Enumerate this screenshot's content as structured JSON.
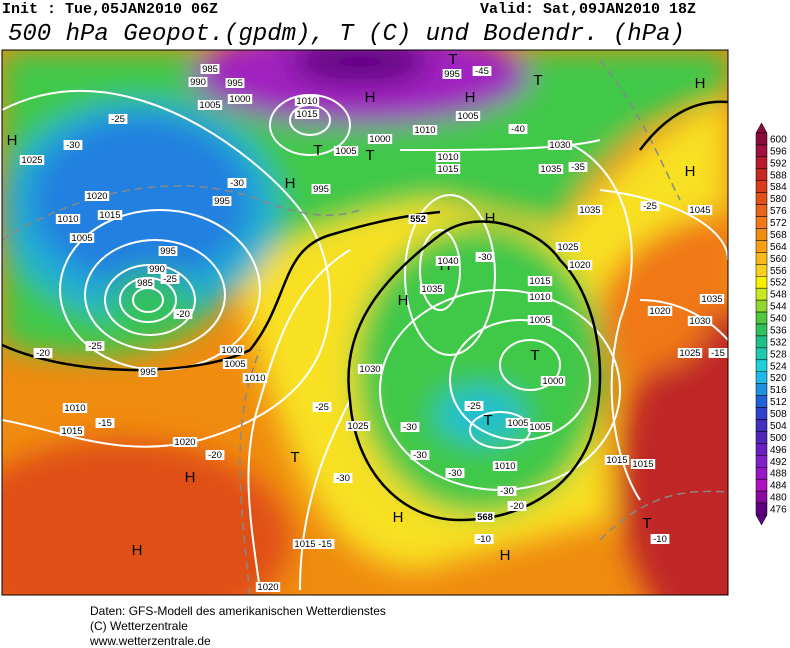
{
  "header": {
    "init": "Init : Tue,05JAN2010 06Z",
    "valid": "Valid: Sat,09JAN2010 18Z",
    "title": "500 hPa Geopot.(gpdm), T (C) und Bodendr. (hPa)"
  },
  "footer": [
    "Daten: GFS-Modell des amerikanischen Wetterdienstes",
    "(C) Wetterzentrale",
    "www.wetterzentrale.de"
  ],
  "colorbar": {
    "levels": [
      600,
      596,
      592,
      588,
      584,
      580,
      576,
      572,
      568,
      564,
      560,
      556,
      552,
      548,
      544,
      540,
      536,
      532,
      528,
      524,
      520,
      516,
      512,
      508,
      504,
      500,
      496,
      492,
      488,
      484,
      480,
      476
    ],
    "colors": [
      "#8b0a3c",
      "#a01040",
      "#b81c2c",
      "#c82820",
      "#d83c18",
      "#e05018",
      "#e86418",
      "#f07818",
      "#f08c10",
      "#f8a010",
      "#f8b818",
      "#f8d020",
      "#f8f000",
      "#c8e820",
      "#90d830",
      "#50c840",
      "#30c060",
      "#20c088",
      "#20c8b0",
      "#20d0d8",
      "#20b8e8",
      "#2090e0",
      "#2060d8",
      "#3040d0",
      "#4030c0",
      "#5028b8",
      "#6820c0",
      "#8020c8",
      "#9818c8",
      "#b010c0",
      "#8808a0",
      "#600080"
    ]
  },
  "map_labels": [
    "H",
    "1025",
    "-25",
    "-30",
    "1020",
    "1015",
    "1010",
    "1005",
    "985",
    "990",
    "995",
    "1000",
    "1005",
    "1010",
    "1015",
    "H",
    "T",
    "995",
    "H",
    "1010",
    "1005",
    "-40",
    "T",
    "1000",
    "1005",
    "T",
    "H",
    "995",
    "995",
    "-30",
    "1010",
    "1015",
    "1030",
    "1035",
    "-35",
    "H",
    "1045",
    "1035",
    "-25",
    "H",
    "995",
    "990",
    "985",
    "-25",
    "-20",
    "-20",
    "-25",
    "1000",
    "1005",
    "995",
    "1010",
    "1010",
    "1015",
    "-15",
    "1020",
    "-20",
    "T",
    "H",
    "H",
    "1015",
    "-15",
    "1020",
    "-30",
    "-25",
    "1025",
    "1030",
    "H",
    "H",
    "1040",
    "1035",
    "-30",
    "1015",
    "1010",
    "1005",
    "T",
    "1000",
    "-25",
    "T",
    "-30",
    "1005",
    "1005",
    "-30",
    "1010",
    "-30",
    "-30",
    "-20",
    "H",
    "568",
    "H",
    "-10",
    "T",
    "-10",
    "1015",
    "1015",
    "1025",
    "1020",
    "1020",
    "1030",
    "1035",
    "1025",
    "-15",
    "H",
    "T",
    "-45",
    "552"
  ]
}
